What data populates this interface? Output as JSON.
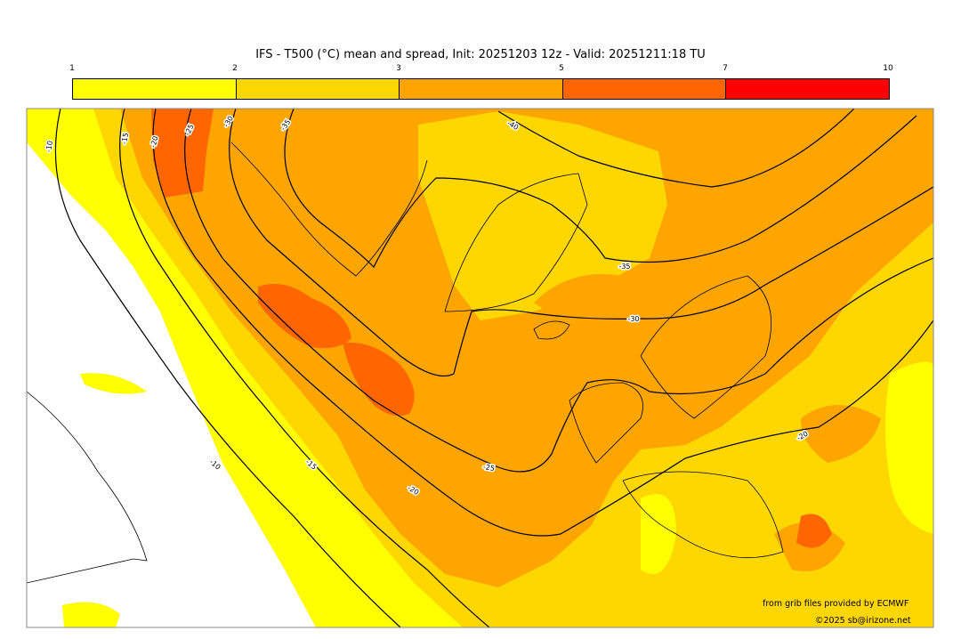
{
  "title": "IFS - T500 (°C) mean and spread, Init: 20251203 12z - Valid: 20251211:18 TU",
  "colorbar": {
    "ticks": [
      "1",
      "2",
      "3",
      "5",
      "7",
      "10"
    ],
    "colors": [
      "#ffff00",
      "#ffd700",
      "#ffa500",
      "#ff6600",
      "#ff0000"
    ]
  },
  "contour_labels": [
    "-10",
    "-15",
    "-20",
    "-25",
    "-30",
    "-35",
    "-40",
    "-35",
    "-30",
    "-20",
    "-25",
    "-20",
    "-15",
    "-10"
  ],
  "credits": {
    "source": "from grib files provided by ECMWF",
    "copyright": "©2025 sb@irizone.net"
  }
}
